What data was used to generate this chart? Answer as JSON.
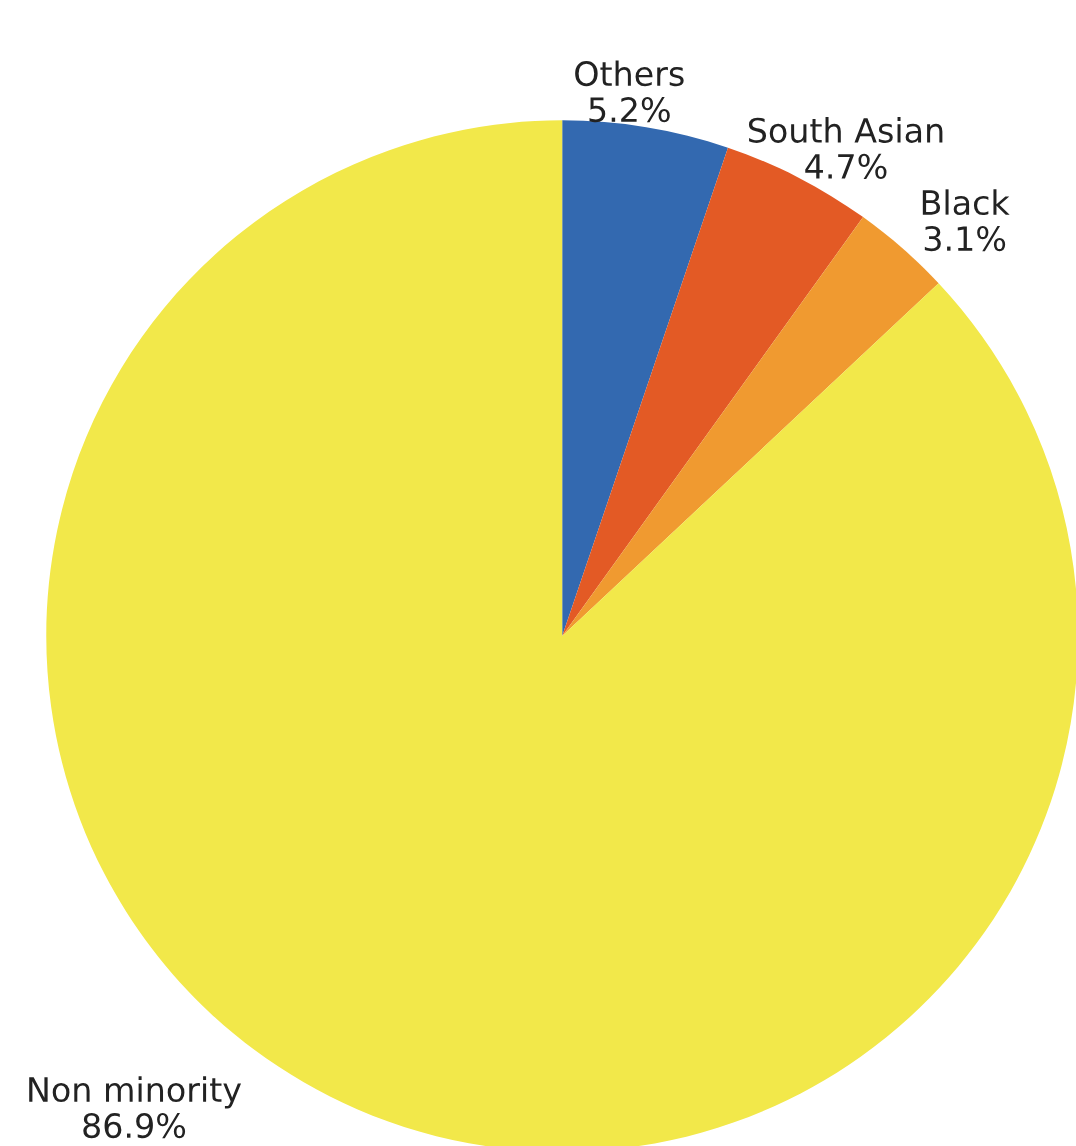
{
  "chart_data": {
    "type": "pie",
    "categories": [
      "Others",
      "South Asian",
      "Black",
      "Non minority"
    ],
    "values": [
      5.2,
      4.7,
      3.1,
      86.9
    ],
    "value_labels": [
      "5.2%",
      "4.7%",
      "3.1%",
      "86.9%"
    ],
    "colors": [
      "#3369b0",
      "#e35a25",
      "#f09a30",
      "#f2e84a"
    ],
    "legend": false
  }
}
